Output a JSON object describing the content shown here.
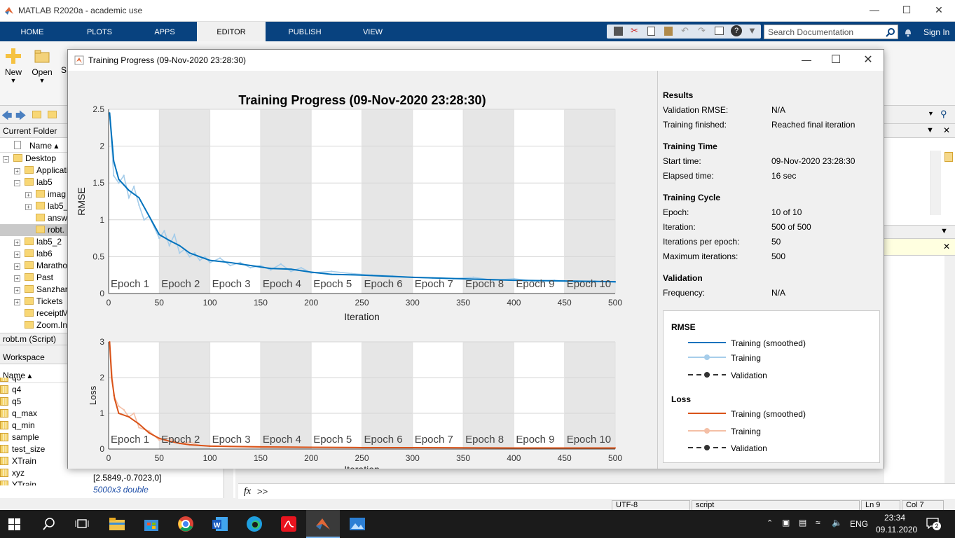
{
  "app": {
    "title": "MATLAB R2020a - academic use"
  },
  "ribbon": {
    "tabs": [
      "HOME",
      "PLOTS",
      "APPS",
      "EDITOR",
      "PUBLISH",
      "VIEW"
    ],
    "active_tab": "EDITOR",
    "search_placeholder": "Search Documentation",
    "sign_in": "Sign In"
  },
  "toolstrip": {
    "new_label": "New",
    "open_label": "Open",
    "save_label": "S"
  },
  "current_folder": {
    "title": "Current Folder",
    "name_col": "Name ▴",
    "items": [
      {
        "label": "Desktop",
        "level": 0,
        "exp": "−"
      },
      {
        "label": "Applicati",
        "level": 1,
        "exp": "+"
      },
      {
        "label": "lab5",
        "level": 1,
        "exp": "−"
      },
      {
        "label": "imag",
        "level": 2,
        "exp": "+"
      },
      {
        "label": "lab5_",
        "level": 2,
        "exp": "+"
      },
      {
        "label": "answ",
        "level": 2,
        "exp": ""
      },
      {
        "label": "robt.",
        "level": 2,
        "exp": "",
        "selected": true
      },
      {
        "label": "lab5_2",
        "level": 1,
        "exp": "+"
      },
      {
        "label": "lab6",
        "level": 1,
        "exp": "+"
      },
      {
        "label": "Marathon",
        "level": 1,
        "exp": "+"
      },
      {
        "label": "Past",
        "level": 1,
        "exp": "+"
      },
      {
        "label": "Sanzhar",
        "level": 1,
        "exp": "+"
      },
      {
        "label": "Tickets",
        "level": 1,
        "exp": "+"
      },
      {
        "label": "receiptM",
        "level": 1,
        "exp": ""
      },
      {
        "label": "Zoom.In",
        "level": 1,
        "exp": ""
      }
    ],
    "details": "robt.m  (Script)"
  },
  "workspace": {
    "title": "Workspace",
    "name_col": "Name ▴",
    "vars": [
      {
        "name": "q3",
        "value": ""
      },
      {
        "name": "q4",
        "value": ""
      },
      {
        "name": "q5",
        "value": ""
      },
      {
        "name": "q_max",
        "value": ""
      },
      {
        "name": "q_min",
        "value": ""
      },
      {
        "name": "sample",
        "value": ""
      },
      {
        "name": "test_size",
        "value": ""
      },
      {
        "name": "XTrain",
        "value": ""
      },
      {
        "name": "xyz",
        "value": "[2.5849,-0.7023,0]"
      },
      {
        "name": "YTrain",
        "value": "5000x3 double"
      }
    ]
  },
  "command": {
    "prompt": ">>",
    "fx": "fx"
  },
  "statusbar": {
    "encoding": "UTF-8",
    "type": "script",
    "ln": "Ln  9",
    "col": "Col  7"
  },
  "dialog": {
    "title": "Training Progress (09-Nov-2020 23:28:30)"
  },
  "info": {
    "results_head": "Results",
    "training_time_head": "Training Time",
    "training_cycle_head": "Training Cycle",
    "validation_head": "Validation",
    "rows_results": [
      {
        "label": "Validation RMSE:",
        "value": "N/A"
      },
      {
        "label": "Training finished:",
        "value": "Reached final iteration"
      }
    ],
    "rows_time": [
      {
        "label": "Start time:",
        "value": "09-Nov-2020 23:28:30"
      },
      {
        "label": "Elapsed time:",
        "value": "16 sec"
      }
    ],
    "rows_cycle": [
      {
        "label": "Epoch:",
        "value": "10 of 10"
      },
      {
        "label": "Iteration:",
        "value": "500 of 500"
      },
      {
        "label": "Iterations per epoch:",
        "value": "50"
      },
      {
        "label": "Maximum iterations:",
        "value": "500"
      }
    ],
    "rows_validation": [
      {
        "label": "Frequency:",
        "value": "N/A"
      }
    ]
  },
  "legend": {
    "rmse_head": "RMSE",
    "loss_head": "Loss",
    "rmse_items": [
      "Training (smoothed)",
      "Training",
      "Validation"
    ],
    "loss_items": [
      "Training (smoothed)",
      "Training",
      "Validation"
    ],
    "colors": {
      "rmse_smooth": "#0072bd",
      "rmse_raw": "#a6cdea",
      "loss_smooth": "#d95319",
      "loss_raw": "#f4bfa6",
      "validation": "#333333"
    }
  },
  "taskbar": {
    "lang": "ENG",
    "time": "23:34",
    "date": "09.11.2020",
    "notif": "2"
  },
  "chart_data": [
    {
      "type": "line",
      "title": "Training Progress (09-Nov-2020 23:28:30)",
      "xlabel": "Iteration",
      "ylabel": "RMSE",
      "xlim": [
        0,
        500
      ],
      "ylim": [
        0,
        2.5
      ],
      "xticks": [
        "0",
        "50",
        "100",
        "150",
        "200",
        "250",
        "300",
        "350",
        "400",
        "450",
        "500"
      ],
      "yticks": [
        "0",
        "0.5",
        "1",
        "1.5",
        "2",
        "2.5"
      ],
      "epochs": [
        "Epoch 1",
        "Epoch 2",
        "Epoch 3",
        "Epoch 4",
        "Epoch 5",
        "Epoch 6",
        "Epoch 7",
        "Epoch 8",
        "Epoch 9",
        "Epoch 10"
      ],
      "series": [
        {
          "name": "Training (smoothed)",
          "x": [
            1,
            5,
            10,
            20,
            30,
            40,
            50,
            60,
            70,
            80,
            90,
            100,
            120,
            140,
            160,
            180,
            200,
            220,
            250,
            300,
            350,
            400,
            450,
            500
          ],
          "y": [
            2.45,
            1.8,
            1.55,
            1.4,
            1.3,
            1.05,
            0.8,
            0.72,
            0.65,
            0.55,
            0.5,
            0.45,
            0.42,
            0.38,
            0.34,
            0.33,
            0.29,
            0.26,
            0.25,
            0.22,
            0.2,
            0.18,
            0.17,
            0.16
          ]
        },
        {
          "name": "Training",
          "x": [
            1,
            5,
            10,
            15,
            20,
            25,
            30,
            35,
            40,
            45,
            50,
            55,
            60,
            65,
            70,
            75,
            80,
            85,
            90,
            95,
            100,
            110,
            120,
            130,
            140,
            150,
            160,
            170,
            180,
            190,
            200,
            220,
            240,
            260,
            280,
            300,
            320,
            340,
            360,
            380,
            400,
            420,
            440,
            460,
            480,
            500
          ],
          "y": [
            2.45,
            1.6,
            1.5,
            1.6,
            1.3,
            1.45,
            1.2,
            1.0,
            1.05,
            0.9,
            0.75,
            0.85,
            0.65,
            0.8,
            0.55,
            0.6,
            0.5,
            0.55,
            0.45,
            0.5,
            0.42,
            0.48,
            0.38,
            0.42,
            0.35,
            0.38,
            0.32,
            0.4,
            0.3,
            0.35,
            0.28,
            0.3,
            0.27,
            0.25,
            0.24,
            0.22,
            0.21,
            0.2,
            0.22,
            0.18,
            0.2,
            0.17,
            0.18,
            0.16,
            0.17,
            0.15
          ]
        }
      ]
    },
    {
      "type": "line",
      "xlabel": "Iteration",
      "ylabel": "Loss",
      "xlim": [
        0,
        500
      ],
      "ylim": [
        0,
        3
      ],
      "xticks": [
        "0",
        "50",
        "100",
        "150",
        "200",
        "250",
        "300",
        "350",
        "400",
        "450",
        "500"
      ],
      "yticks": [
        "0",
        "1",
        "2",
        "3"
      ],
      "epochs": [
        "Epoch 1",
        "Epoch 2",
        "Epoch 3",
        "Epoch 4",
        "Epoch 5",
        "Epoch 6",
        "Epoch 7",
        "Epoch 8",
        "Epoch 9",
        "Epoch 10"
      ],
      "series": [
        {
          "name": "Training (smoothed)",
          "x": [
            1,
            3,
            6,
            10,
            20,
            30,
            40,
            50,
            60,
            70,
            80,
            90,
            100,
            120,
            150,
            200,
            250,
            300,
            400,
            500
          ],
          "y": [
            3.0,
            2.0,
            1.4,
            1.0,
            0.9,
            0.7,
            0.45,
            0.3,
            0.22,
            0.16,
            0.12,
            0.1,
            0.08,
            0.07,
            0.06,
            0.05,
            0.04,
            0.04,
            0.03,
            0.03
          ]
        },
        {
          "name": "Training",
          "x": [
            1,
            5,
            10,
            15,
            20,
            25,
            30,
            40,
            50,
            60,
            70,
            80,
            90,
            100,
            150,
            200,
            300,
            400,
            500
          ],
          "y": [
            3.0,
            1.5,
            1.2,
            1.1,
            0.9,
            1.0,
            0.6,
            0.5,
            0.25,
            0.3,
            0.15,
            0.2,
            0.1,
            0.09,
            0.07,
            0.05,
            0.04,
            0.03,
            0.03
          ]
        }
      ]
    }
  ]
}
